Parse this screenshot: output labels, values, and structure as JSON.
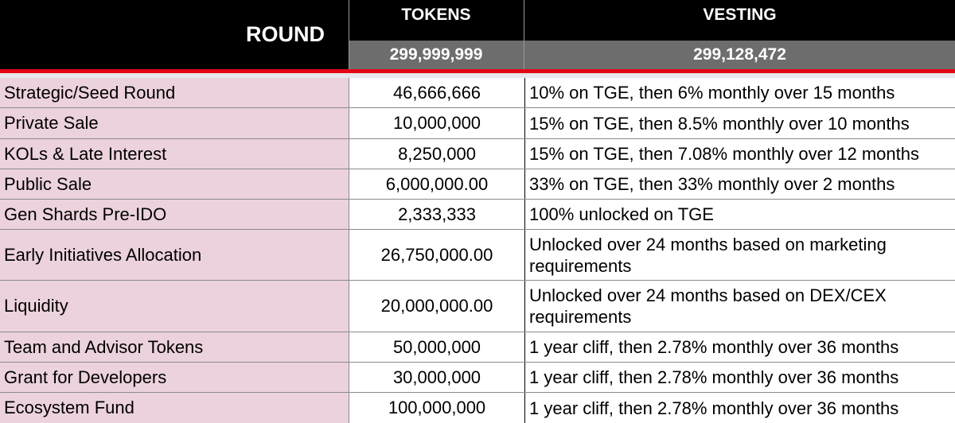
{
  "header": {
    "round_label": "ROUND",
    "tokens_label": "TOKENS",
    "vesting_label": "VESTING",
    "tokens_total": "299,999,999",
    "vesting_total": "299,128,472"
  },
  "rows": [
    {
      "round": "Strategic/Seed Round",
      "tokens": "46,666,666",
      "vesting": "10% on TGE, then 6% monthly over 15 months"
    },
    {
      "round": "Private Sale",
      "tokens": "10,000,000",
      "vesting": "15% on TGE, then 8.5% monthly over 10 months"
    },
    {
      "round": "KOLs & Late Interest",
      "tokens": "8,250,000",
      "vesting": "15% on TGE, then 7.08% monthly over 12 months"
    },
    {
      "round": "Public Sale",
      "tokens": "6,000,000.00",
      "vesting": "33% on TGE, then 33% monthly over 2 months"
    },
    {
      "round": "Gen Shards Pre-IDO",
      "tokens": "2,333,333",
      "vesting": "100% unlocked on TGE"
    },
    {
      "round": "Early Initiatives Allocation",
      "tokens": "26,750,000.00",
      "vesting": "Unlocked over 24 months based on marketing requirements"
    },
    {
      "round": "Liquidity",
      "tokens": "20,000,000.00",
      "vesting": "Unlocked over 24 months based on DEX/CEX requirements"
    },
    {
      "round": "Team and Advisor Tokens",
      "tokens": "50,000,000",
      "vesting": "1 year cliff, then 2.78% monthly over 36 months"
    },
    {
      "round": "Grant for Developers",
      "tokens": "30,000,000",
      "vesting": "1 year cliff, then 2.78% monthly over 36 months"
    },
    {
      "round": "Ecosystem Fund",
      "tokens": "100,000,000",
      "vesting": "1 year cliff, then 2.78% monthly over 36 months"
    }
  ]
}
